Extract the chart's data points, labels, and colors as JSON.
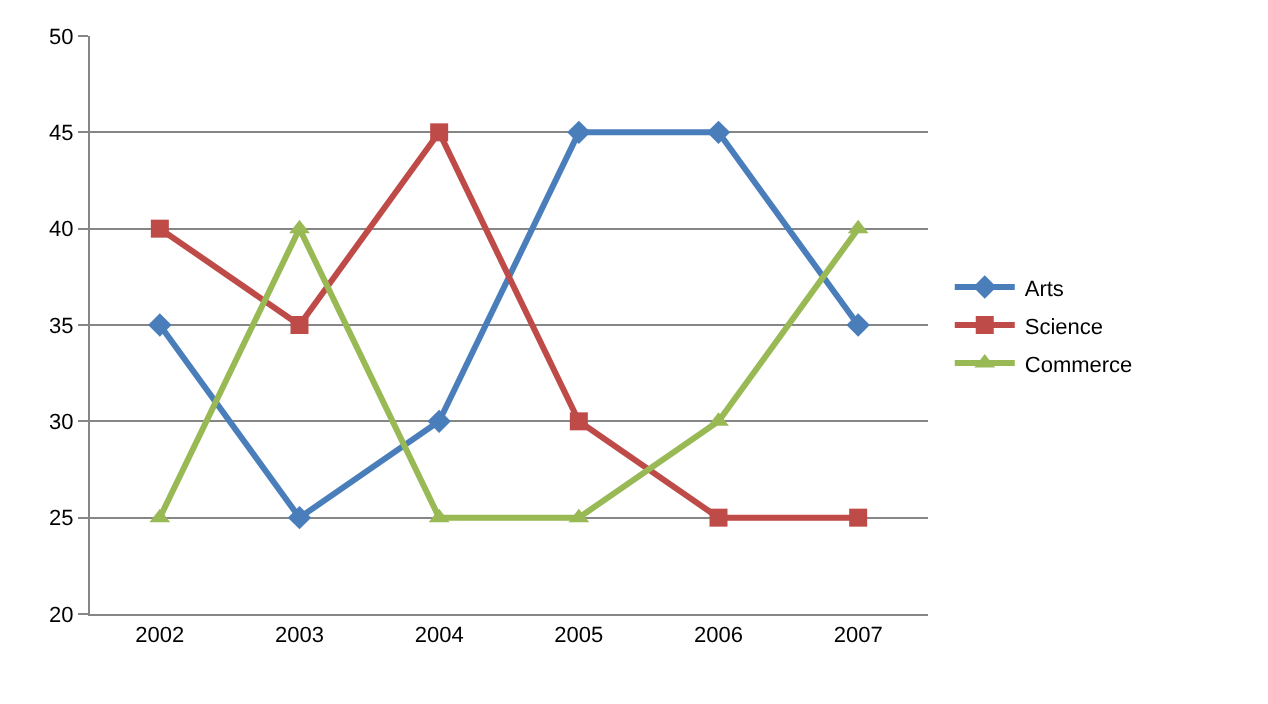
{
  "chart_data": {
    "type": "line",
    "categories": [
      "2002",
      "2003",
      "2004",
      "2005",
      "2006",
      "2007"
    ],
    "series": [
      {
        "name": "Arts",
        "color": "#4a7ebb",
        "marker": "diamond",
        "values": [
          35,
          25,
          30,
          45,
          45,
          35
        ]
      },
      {
        "name": "Science",
        "color": "#be4b48",
        "marker": "square",
        "values": [
          40,
          35,
          45,
          30,
          25,
          25
        ]
      },
      {
        "name": "Commerce",
        "color": "#98b954",
        "marker": "triangle",
        "values": [
          25,
          40,
          25,
          25,
          30,
          40
        ]
      }
    ],
    "ylim": [
      20,
      50
    ],
    "yticks": [
      20,
      25,
      30,
      35,
      40,
      45,
      50
    ],
    "grid": "y",
    "legend": "right",
    "line_style": "solid"
  }
}
